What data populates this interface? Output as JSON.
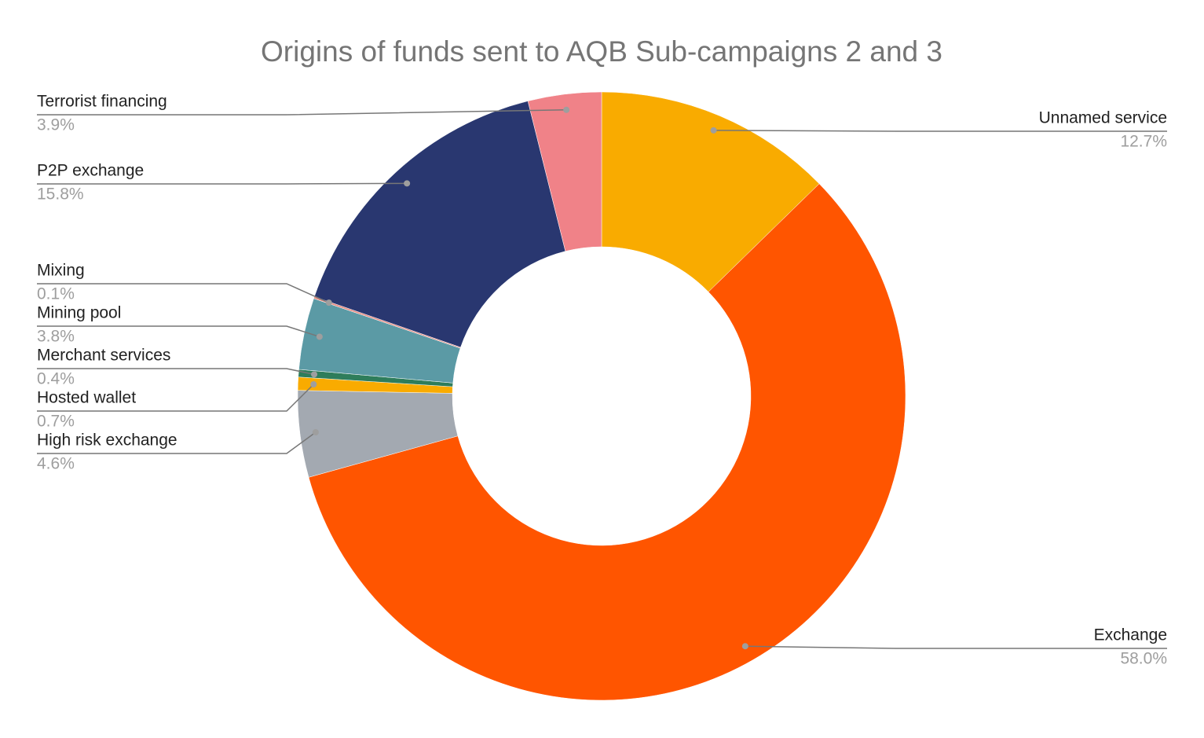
{
  "chart_data": {
    "type": "pie",
    "title": "Origins of funds sent to AQB Sub-campaigns 2 and 3",
    "categories": [
      "Unnamed service",
      "Exchange",
      "High risk exchange",
      "Hosted wallet",
      "Merchant services",
      "Mining pool",
      "Mixing",
      "P2P exchange",
      "Terrorist financing"
    ],
    "values": [
      12.7,
      58.0,
      4.6,
      0.7,
      0.4,
      3.8,
      0.1,
      15.8,
      3.9
    ],
    "value_labels": [
      "12.7%",
      "58.0%",
      "4.6%",
      "0.7%",
      "0.4%",
      "3.8%",
      "0.1%",
      "15.8%",
      "3.9%"
    ],
    "colors": [
      "#f9ab00",
      "#ff5500",
      "#a3a9b1",
      "#f9ab00",
      "#2e7d5b",
      "#5b9aa5",
      "#e8897f",
      "#293770",
      "#f08288"
    ],
    "donut": true
  }
}
